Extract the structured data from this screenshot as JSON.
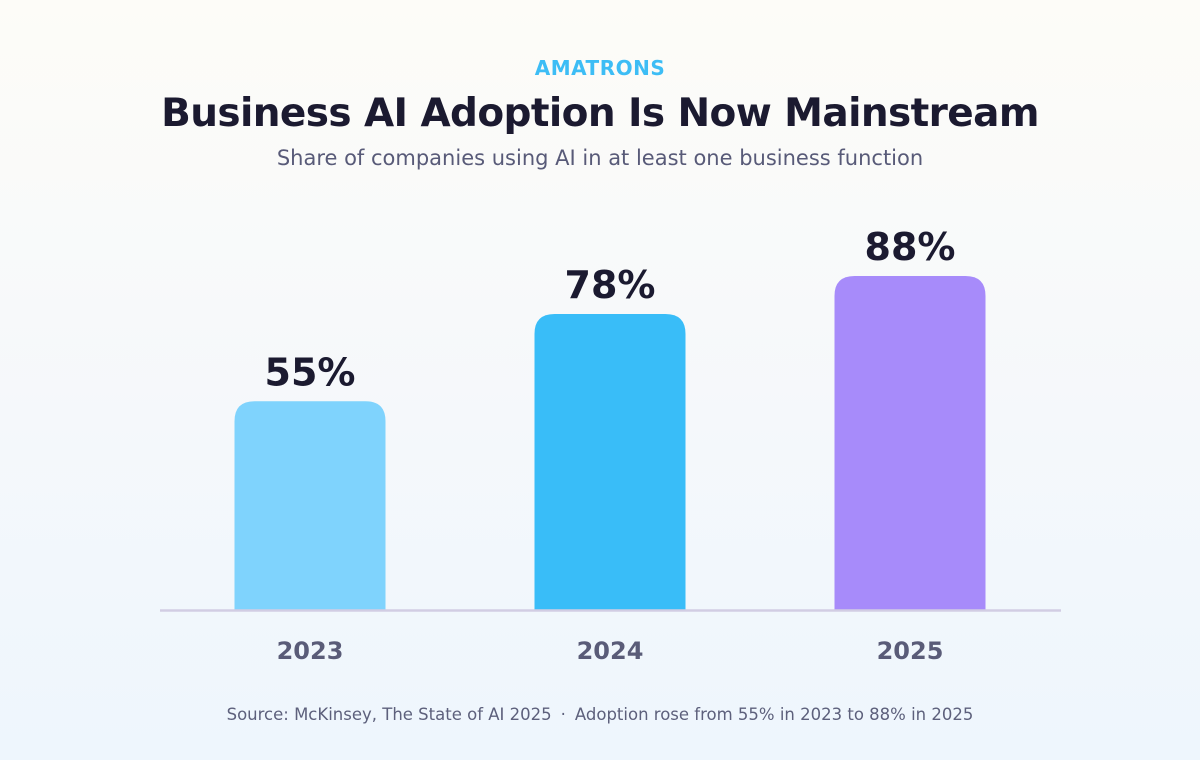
{
  "header": {
    "brand": "AMATRONS",
    "title": "Business AI Adoption Is Now Mainstream",
    "subtitle": "Share of companies using AI in at least one business function"
  },
  "footer": {
    "source": "Source: McKinsey, The State of AI 2025",
    "separator": "·",
    "note": "Adoption rose from 55% in 2023 to 88% in 2025"
  },
  "chart_data": {
    "type": "bar",
    "title": "Business AI Adoption Is Now Mainstream",
    "subtitle": "Share of companies using AI in at least one business function",
    "categories": [
      "2023",
      "2024",
      "2025"
    ],
    "values": [
      55,
      78,
      88
    ],
    "value_labels": [
      "55%",
      "78%",
      "88%"
    ],
    "bar_colors": [
      "#7fd3fd",
      "#39bdf8",
      "#a78bfa"
    ],
    "xlabel": "",
    "ylabel": "",
    "ylim": [
      0,
      100
    ],
    "grid": false,
    "legend": "none"
  }
}
